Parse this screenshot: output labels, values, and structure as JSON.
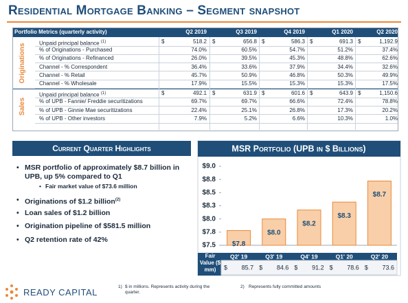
{
  "header": {
    "title": "Residential Mortgage Banking – Segment snapshot"
  },
  "table": {
    "columns": [
      "Portfolio Metrics (quarterly activity)",
      "Q2 2019",
      "Q3 2019",
      "Q4 2019",
      "Q1 2020",
      "Q2 2020"
    ],
    "groups": [
      {
        "name": "Originations",
        "rows": [
          {
            "label": "Unpaid principal balance",
            "note": "(1)",
            "currency": "$",
            "values": [
              "518.2",
              "656.8",
              "586.3",
              "691.3",
              "1,192.9"
            ]
          },
          {
            "label": "% of Originations - Purchased",
            "values": [
              "74.0%",
              "60.5%",
              "54.7%",
              "51.2%",
              "37.4%"
            ]
          },
          {
            "label": "% of Originations - Refinanced",
            "values": [
              "26.0%",
              "39.5%",
              "45.3%",
              "48.8%",
              "62.6%"
            ]
          },
          {
            "label": "Channel - % Correspondent",
            "values": [
              "36.4%",
              "33.6%",
              "37.9%",
              "34.4%",
              "32.6%"
            ]
          },
          {
            "label": "Channel - % Retail",
            "values": [
              "45.7%",
              "50.9%",
              "46.8%",
              "50.3%",
              "49.9%"
            ]
          },
          {
            "label": "Channel - % Wholesale",
            "values": [
              "17.9%",
              "15.5%",
              "15.3%",
              "15.3%",
              "17.5%"
            ]
          }
        ]
      },
      {
        "name": "Sales",
        "rows": [
          {
            "label": "Unpaid principal balance",
            "note": "(1)",
            "currency": "$",
            "values": [
              "492.1",
              "631.9",
              "601.6",
              "643.9",
              "1,150.6"
            ]
          },
          {
            "label": "% of UPB - Fannie/ Freddie securitizations",
            "values": [
              "69.7%",
              "69.7%",
              "66.6%",
              "72.4%",
              "78.8%"
            ]
          },
          {
            "label": "% of UPB - Ginnie Mae securitizations",
            "values": [
              "22.4%",
              "25.1%",
              "26.8%",
              "17.3%",
              "20.2%"
            ]
          },
          {
            "label": "% of UPB - Other investors",
            "values": [
              "7.9%",
              "5.2%",
              "6.6%",
              "10.3%",
              "1.0%"
            ]
          }
        ]
      }
    ]
  },
  "highlights": {
    "title": "Current Quarter Highlights",
    "bullets": [
      {
        "text": "MSR portfolio of approximately $8.7 billion in UPB, up 5% compared to Q1",
        "sub": [
          "Fair market value of $73.6 million"
        ]
      },
      {
        "text": "Originations of $1.2 billion",
        "note": "(2)"
      },
      {
        "text": "Loan sales of $1.2 billion"
      },
      {
        "text": "Origination pipeline of $581.5 million"
      },
      {
        "text": "Q2 retention rate of 42%"
      }
    ]
  },
  "chart_data": {
    "type": "bar",
    "title": "MSR Portfolio (UPB in $ Billions)",
    "categories": [
      "Q2' 19",
      "Q3' 19",
      "Q4' 19",
      "Q1' 20",
      "Q2' 20"
    ],
    "values": [
      7.78,
      8.0,
      8.17,
      8.32,
      8.72
    ],
    "value_labels": [
      "$7.8",
      "$8.0",
      "$8.2",
      "$8.3",
      "$8.7"
    ],
    "color": "#f8cfa8",
    "ylim": [
      7.5,
      9.0
    ],
    "yticks": [
      {
        "value": 7.5,
        "label": "$7.5"
      },
      {
        "value": 7.75,
        "label": "$7.8"
      },
      {
        "value": 8.0,
        "label": "$8.0"
      },
      {
        "value": 8.25,
        "label": "$8.3"
      },
      {
        "value": 8.5,
        "label": "$8.5"
      },
      {
        "value": 8.75,
        "label": "$8.8"
      },
      {
        "value": 9.0,
        "label": "$9.0"
      }
    ],
    "fair_value": {
      "label": "Fair Value ($ mm)",
      "currency": "$",
      "values": [
        85.7,
        84.6,
        91.2,
        78.6,
        73.6
      ]
    }
  },
  "footnotes": [
    {
      "marker": "1)",
      "text": "$ in millions. Represents activity during the quarter."
    },
    {
      "marker": "2)",
      "text": "Represents fully committed amounts"
    }
  ],
  "logo": "READY CAPITAL"
}
